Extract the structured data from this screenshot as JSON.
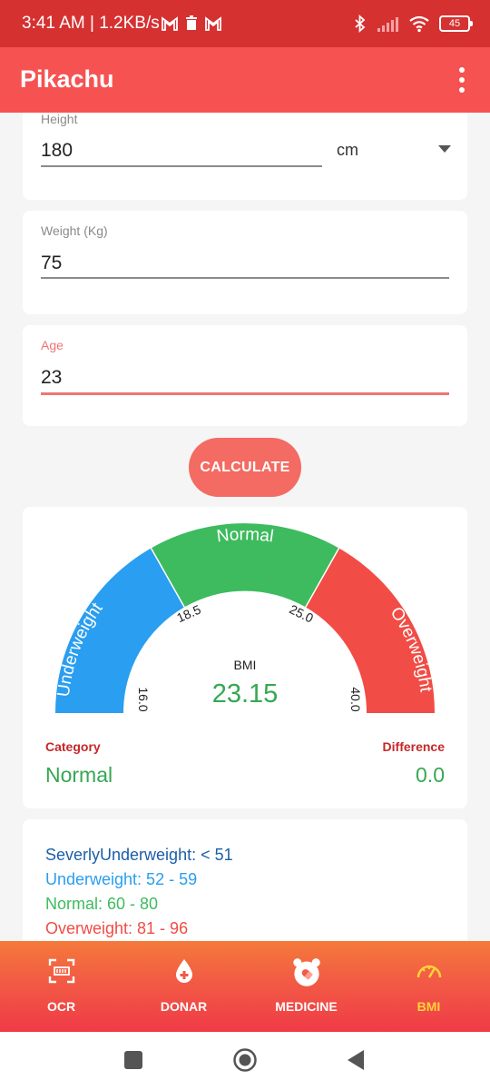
{
  "status": {
    "text": "3:41 AM | 1.2KB/s",
    "battery": "45"
  },
  "app": {
    "title": "Pikachu",
    "menu_icon": "more-vert-icon"
  },
  "form": {
    "height": {
      "label": "Height",
      "value": "180",
      "unit": "cm"
    },
    "weight": {
      "label": "Weight (Kg)",
      "value": "75"
    },
    "age": {
      "label": "Age",
      "value": "23"
    },
    "calculate_label": "CALCULATE"
  },
  "gauge": {
    "segments": [
      "Underweight",
      "Normal",
      "Overweight"
    ],
    "ticks": [
      "16.0",
      "18.5",
      "25.0",
      "40.0"
    ],
    "bmi_label": "BMI",
    "bmi_value": "23.15",
    "colors": {
      "underweight": "#2a9ef0",
      "normal": "#3dbb5e",
      "overweight": "#f14c45"
    }
  },
  "result": {
    "category_label": "Category",
    "category_value": "Normal",
    "difference_label": "Difference",
    "difference_value": "0.0"
  },
  "ranges": [
    {
      "text": "SeverlyUnderweight: < 51",
      "color": "#1c5fa8"
    },
    {
      "text": "Underweight: 52 - 59",
      "color": "#2a9ef0"
    },
    {
      "text": "Normal: 60 - 80",
      "color": "#3dbb5e"
    },
    {
      "text": "Overweight: 81 - 96",
      "color": "#f14c45"
    }
  ],
  "bottom_nav": [
    {
      "label": "OCR",
      "icon": "scanner-icon"
    },
    {
      "label": "DONAR",
      "icon": "blood-drop-icon"
    },
    {
      "label": "MEDICINE",
      "icon": "pill-alarm-icon"
    },
    {
      "label": "BMI",
      "icon": "speedometer-icon",
      "active": true
    }
  ]
}
